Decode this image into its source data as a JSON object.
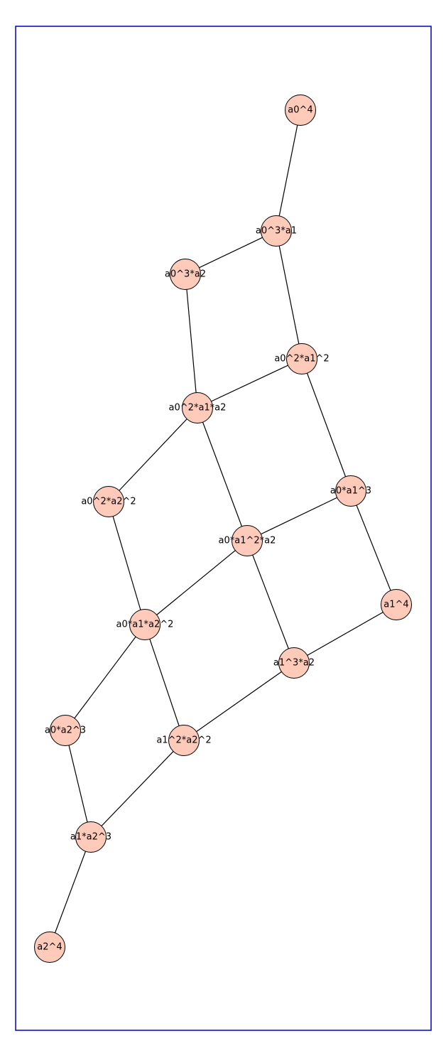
{
  "colors": {
    "frame": "#0000cc",
    "node_fill": "#fecbbb",
    "node_stroke": "#000000",
    "edge": "#000000",
    "background": "#ffffff"
  },
  "graph": {
    "nodes": [
      {
        "id": "a0^4",
        "label": "a0^4"
      },
      {
        "id": "a0^3*a1",
        "label": "a0^3*a1"
      },
      {
        "id": "a0^3*a2",
        "label": "a0^3*a2"
      },
      {
        "id": "a0^2*a1^2",
        "label": "a0^2*a1^2"
      },
      {
        "id": "a0^2*a1*a2",
        "label": "a0^2*a1*a2"
      },
      {
        "id": "a0^2*a2^2",
        "label": "a0^2*a2^2"
      },
      {
        "id": "a0*a1^3",
        "label": "a0*a1^3"
      },
      {
        "id": "a0*a1^2*a2",
        "label": "a0*a1^2*a2"
      },
      {
        "id": "a1^4",
        "label": "a1^4"
      },
      {
        "id": "a0*a1*a2^2",
        "label": "a0*a1*a2^2"
      },
      {
        "id": "a1^3*a2",
        "label": "a1^3*a2"
      },
      {
        "id": "a0*a2^3",
        "label": "a0*a2^3"
      },
      {
        "id": "a1^2*a2^2",
        "label": "a1^2*a2^2"
      },
      {
        "id": "a1*a2^3",
        "label": "a1*a2^3"
      },
      {
        "id": "a2^4",
        "label": "a2^4"
      }
    ],
    "edges": [
      [
        "a0^4",
        "a0^3*a1"
      ],
      [
        "a0^3*a1",
        "a0^3*a2"
      ],
      [
        "a0^3*a1",
        "a0^2*a1^2"
      ],
      [
        "a0^3*a2",
        "a0^2*a1*a2"
      ],
      [
        "a0^2*a1^2",
        "a0^2*a1*a2"
      ],
      [
        "a0^2*a1^2",
        "a0*a1^3"
      ],
      [
        "a0^2*a1*a2",
        "a0^2*a2^2"
      ],
      [
        "a0^2*a1*a2",
        "a0*a1^2*a2"
      ],
      [
        "a0*a1^3",
        "a0*a1^2*a2"
      ],
      [
        "a0*a1^3",
        "a1^4"
      ],
      [
        "a0^2*a2^2",
        "a0*a1*a2^2"
      ],
      [
        "a0*a1^2*a2",
        "a0*a1*a2^2"
      ],
      [
        "a0*a1^2*a2",
        "a1^3*a2"
      ],
      [
        "a1^4",
        "a1^3*a2"
      ],
      [
        "a0*a1*a2^2",
        "a0*a2^3"
      ],
      [
        "a0*a1*a2^2",
        "a1^2*a2^2"
      ],
      [
        "a1^3*a2",
        "a1^2*a2^2"
      ],
      [
        "a0*a2^3",
        "a1*a2^3"
      ],
      [
        "a1^2*a2^2",
        "a1*a2^3"
      ],
      [
        "a1*a2^3",
        "a2^4"
      ]
    ]
  }
}
